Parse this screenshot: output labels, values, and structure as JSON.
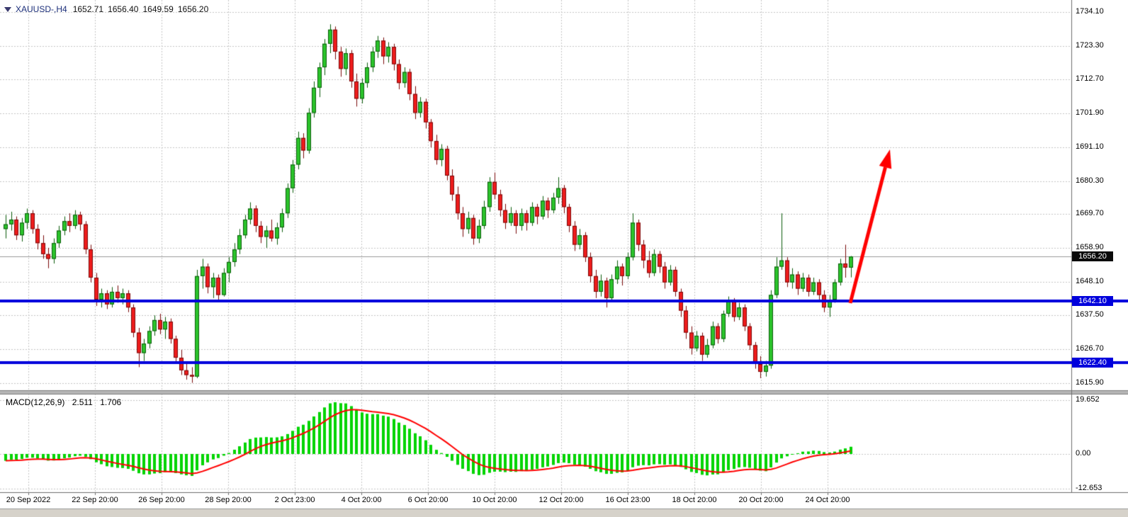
{
  "header": {
    "symbol": "XAUUSD-,H4",
    "open": "1652.71",
    "high": "1656.40",
    "low": "1649.59",
    "close": "1656.20"
  },
  "macd_header": {
    "name": "MACD(12,26,9)",
    "main": "2.511",
    "signal": "1.706"
  },
  "price_tags": [
    {
      "kind": "current-price",
      "label": "1656.20",
      "price": 1656.2,
      "bg": "#0a0a0a"
    },
    {
      "kind": "line-level",
      "label": "1642.10",
      "price": 1642.1,
      "bg": "#0000dc"
    },
    {
      "kind": "line-level",
      "label": "1622.40",
      "price": 1622.4,
      "bg": "#0000dc"
    }
  ],
  "colors": {
    "up": "#2bc42b",
    "up_border": "#0b5d0b",
    "down": "#ee1c1c",
    "down_border": "#7a0a0a",
    "grid": "#c6c6c6",
    "current_line": "#9a9a9a",
    "hline": "#0000dc",
    "arrow": "#ff0000",
    "macd_hist": "#00d400",
    "macd_signal": "#ff0000"
  },
  "chart_data": [
    {
      "type": "candlestick",
      "title": "XAUUSD-,H4",
      "timeframe": "H4",
      "ylim": [
        1615.9,
        1734.1
      ],
      "y_ticks": [
        1734.1,
        1723.3,
        1712.7,
        1701.9,
        1691.1,
        1680.3,
        1669.7,
        1658.9,
        1648.1,
        1637.5,
        1626.7,
        1615.9
      ],
      "y_tick_labels": [
        "1734.10",
        "1723.30",
        "1712.70",
        "1701.90",
        "1691.10",
        "1680.30",
        "1669.70",
        "1658.90",
        "1648.10",
        "1637.50",
        "1626.70",
        "1615.90"
      ],
      "x_tick_labels": [
        "20 Sep 2022",
        "22 Sep 20:00",
        "26 Sep 20:00",
        "28 Sep 20:00",
        "2 Oct 23:00",
        "4 Oct 20:00",
        "6 Oct 20:00",
        "10 Oct 20:00",
        "12 Oct 20:00",
        "16 Oct 23:00",
        "18 Oct 20:00",
        "20 Oct 20:00",
        "24 Oct 20:00"
      ],
      "current_price": {
        "price": 1656.2,
        "label": "1656.20"
      },
      "horizontal_lines": [
        {
          "price": 1642.1,
          "label": "1642.10"
        },
        {
          "price": 1622.4,
          "label": "1622.40"
        }
      ],
      "annotation_arrow": {
        "from": [
          1200,
          428
        ],
        "to": [
          1256,
          211
        ]
      },
      "candles": [
        [
          1665.0,
          1669.5,
          1662.0,
          1666.5
        ],
        [
          1666.5,
          1670.5,
          1664.5,
          1668.0
        ],
        [
          1668.0,
          1669.0,
          1661.5,
          1663.0
        ],
        [
          1663.0,
          1668.5,
          1661.0,
          1667.0
        ],
        [
          1667.0,
          1671.5,
          1665.0,
          1670.0
        ],
        [
          1670.0,
          1671.0,
          1663.5,
          1665.0
        ],
        [
          1665.0,
          1666.5,
          1658.5,
          1660.5
        ],
        [
          1660.5,
          1663.0,
          1655.5,
          1657.0
        ],
        [
          1657.0,
          1659.0,
          1652.5,
          1655.5
        ],
        [
          1655.5,
          1662.0,
          1654.0,
          1660.5
        ],
        [
          1660.5,
          1666.0,
          1659.0,
          1664.5
        ],
        [
          1664.5,
          1669.0,
          1663.0,
          1667.5
        ],
        [
          1667.5,
          1670.0,
          1664.0,
          1666.0
        ],
        [
          1666.0,
          1671.0,
          1665.0,
          1669.5
        ],
        [
          1669.5,
          1670.5,
          1664.5,
          1666.5
        ],
        [
          1666.5,
          1667.5,
          1657.0,
          1658.5
        ],
        [
          1658.5,
          1660.0,
          1648.0,
          1649.5
        ],
        [
          1649.5,
          1651.0,
          1640.5,
          1642.5
        ],
        [
          1642.5,
          1646.0,
          1640.0,
          1644.5
        ],
        [
          1644.5,
          1645.5,
          1639.5,
          1641.0
        ],
        [
          1641.0,
          1646.5,
          1640.0,
          1645.0
        ],
        [
          1645.0,
          1647.0,
          1641.5,
          1643.0
        ],
        [
          1643.0,
          1646.0,
          1641.0,
          1644.5
        ],
        [
          1644.5,
          1645.5,
          1638.5,
          1640.0
        ],
        [
          1640.0,
          1641.0,
          1630.5,
          1632.0
        ],
        [
          1632.0,
          1633.5,
          1621.0,
          1625.5
        ],
        [
          1625.5,
          1630.0,
          1623.0,
          1628.5
        ],
        [
          1628.5,
          1634.0,
          1627.0,
          1632.5
        ],
        [
          1632.5,
          1637.5,
          1631.0,
          1636.0
        ],
        [
          1636.0,
          1638.0,
          1631.5,
          1633.0
        ],
        [
          1633.0,
          1637.0,
          1630.0,
          1635.5
        ],
        [
          1635.5,
          1636.5,
          1628.5,
          1630.0
        ],
        [
          1630.0,
          1631.0,
          1622.5,
          1624.0
        ],
        [
          1624.0,
          1626.5,
          1618.5,
          1620.0
        ],
        [
          1620.0,
          1622.0,
          1617.0,
          1618.5
        ],
        [
          1618.5,
          1621.0,
          1616.0,
          1618.0
        ],
        [
          1618.0,
          1652.0,
          1617.5,
          1650.0
        ],
        [
          1650.0,
          1655.5,
          1646.0,
          1653.0
        ],
        [
          1653.0,
          1654.0,
          1644.5,
          1646.5
        ],
        [
          1646.5,
          1651.0,
          1643.0,
          1649.5
        ],
        [
          1649.5,
          1650.5,
          1642.5,
          1644.0
        ],
        [
          1644.0,
          1652.5,
          1643.5,
          1651.0
        ],
        [
          1651.0,
          1656.0,
          1648.0,
          1654.5
        ],
        [
          1654.5,
          1660.5,
          1653.0,
          1658.5
        ],
        [
          1658.5,
          1665.0,
          1657.0,
          1663.0
        ],
        [
          1663.0,
          1669.5,
          1662.0,
          1668.0
        ],
        [
          1668.0,
          1673.5,
          1666.5,
          1671.5
        ],
        [
          1671.5,
          1672.5,
          1664.0,
          1666.0
        ],
        [
          1666.0,
          1667.5,
          1660.5,
          1662.5
        ],
        [
          1662.5,
          1666.0,
          1659.0,
          1664.5
        ],
        [
          1664.5,
          1668.0,
          1661.0,
          1662.0
        ],
        [
          1662.0,
          1667.0,
          1660.0,
          1665.5
        ],
        [
          1665.5,
          1671.5,
          1664.0,
          1670.0
        ],
        [
          1670.0,
          1679.5,
          1668.5,
          1678.0
        ],
        [
          1678.0,
          1687.0,
          1676.5,
          1685.5
        ],
        [
          1685.5,
          1696.0,
          1684.0,
          1694.0
        ],
        [
          1694.0,
          1695.5,
          1687.5,
          1690.0
        ],
        [
          1690.0,
          1703.5,
          1689.0,
          1702.0
        ],
        [
          1702.0,
          1712.0,
          1700.5,
          1710.0
        ],
        [
          1710.0,
          1718.0,
          1707.0,
          1716.5
        ],
        [
          1716.5,
          1725.5,
          1714.0,
          1724.0
        ],
        [
          1724.0,
          1730.2,
          1721.0,
          1728.5
        ],
        [
          1728.5,
          1729.5,
          1719.0,
          1721.5
        ],
        [
          1721.5,
          1723.0,
          1713.5,
          1716.0
        ],
        [
          1716.0,
          1722.5,
          1714.0,
          1721.0
        ],
        [
          1721.0,
          1722.0,
          1710.0,
          1712.0
        ],
        [
          1712.0,
          1714.5,
          1704.0,
          1706.5
        ],
        [
          1706.5,
          1713.0,
          1705.0,
          1711.5
        ],
        [
          1711.5,
          1718.0,
          1710.0,
          1716.5
        ],
        [
          1716.5,
          1723.0,
          1715.0,
          1721.5
        ],
        [
          1721.5,
          1726.5,
          1719.5,
          1725.0
        ],
        [
          1725.0,
          1726.0,
          1717.5,
          1720.0
        ],
        [
          1720.0,
          1724.5,
          1718.0,
          1723.0
        ],
        [
          1723.0,
          1724.0,
          1715.5,
          1717.5
        ],
        [
          1717.5,
          1719.0,
          1709.5,
          1711.5
        ],
        [
          1711.5,
          1716.5,
          1710.0,
          1715.0
        ],
        [
          1715.0,
          1716.0,
          1706.0,
          1708.0
        ],
        [
          1708.0,
          1710.5,
          1700.0,
          1702.0
        ],
        [
          1702.0,
          1707.0,
          1700.5,
          1705.5
        ],
        [
          1705.5,
          1706.5,
          1697.0,
          1699.0
        ],
        [
          1699.0,
          1700.0,
          1691.0,
          1693.0
        ],
        [
          1693.0,
          1695.0,
          1685.5,
          1687.0
        ],
        [
          1687.0,
          1692.0,
          1685.0,
          1690.5
        ],
        [
          1690.5,
          1691.5,
          1680.5,
          1682.0
        ],
        [
          1682.0,
          1684.0,
          1674.0,
          1676.0
        ],
        [
          1676.0,
          1678.5,
          1668.0,
          1670.0
        ],
        [
          1670.0,
          1672.0,
          1662.5,
          1665.0
        ],
        [
          1665.0,
          1670.5,
          1663.5,
          1668.5
        ],
        [
          1668.5,
          1669.5,
          1660.0,
          1662.0
        ],
        [
          1662.0,
          1668.0,
          1660.5,
          1666.0
        ],
        [
          1666.0,
          1674.0,
          1665.0,
          1672.0
        ],
        [
          1672.0,
          1681.5,
          1670.5,
          1680.0
        ],
        [
          1680.0,
          1683.0,
          1674.5,
          1676.0
        ],
        [
          1676.0,
          1677.5,
          1669.0,
          1671.0
        ],
        [
          1671.0,
          1673.0,
          1665.0,
          1667.0
        ],
        [
          1667.0,
          1672.0,
          1666.0,
          1670.0
        ],
        [
          1670.0,
          1671.0,
          1663.5,
          1666.0
        ],
        [
          1666.0,
          1671.5,
          1664.5,
          1670.0
        ],
        [
          1670.0,
          1671.0,
          1664.5,
          1667.0
        ],
        [
          1667.0,
          1673.5,
          1666.0,
          1672.0
        ],
        [
          1672.0,
          1673.0,
          1666.5,
          1669.0
        ],
        [
          1669.0,
          1675.5,
          1668.0,
          1674.0
        ],
        [
          1674.0,
          1675.0,
          1668.5,
          1671.0
        ],
        [
          1671.0,
          1676.5,
          1670.0,
          1675.0
        ],
        [
          1675.0,
          1681.5,
          1673.0,
          1678.0
        ],
        [
          1678.0,
          1679.0,
          1670.0,
          1672.0
        ],
        [
          1672.0,
          1673.0,
          1664.0,
          1666.0
        ],
        [
          1666.0,
          1667.5,
          1658.0,
          1660.0
        ],
        [
          1660.0,
          1665.0,
          1658.5,
          1663.0
        ],
        [
          1663.0,
          1664.0,
          1654.5,
          1656.0
        ],
        [
          1656.0,
          1657.5,
          1648.0,
          1650.0
        ],
        [
          1650.0,
          1652.0,
          1643.0,
          1645.0
        ],
        [
          1645.0,
          1650.5,
          1643.5,
          1648.5
        ],
        [
          1648.5,
          1649.5,
          1640.0,
          1643.0
        ],
        [
          1643.0,
          1650.5,
          1642.0,
          1649.0
        ],
        [
          1649.0,
          1655.0,
          1647.5,
          1653.0
        ],
        [
          1653.0,
          1654.0,
          1647.0,
          1650.0
        ],
        [
          1650.0,
          1657.5,
          1649.0,
          1656.0
        ],
        [
          1656.0,
          1670.0,
          1655.0,
          1667.0
        ],
        [
          1667.0,
          1668.0,
          1658.0,
          1660.0
        ],
        [
          1660.0,
          1661.5,
          1652.5,
          1655.0
        ],
        [
          1655.0,
          1658.0,
          1649.5,
          1651.0
        ],
        [
          1651.0,
          1658.5,
          1650.0,
          1657.0
        ],
        [
          1657.0,
          1658.0,
          1651.0,
          1653.0
        ],
        [
          1653.0,
          1654.5,
          1646.0,
          1648.0
        ],
        [
          1648.0,
          1653.5,
          1647.0,
          1652.0
        ],
        [
          1652.0,
          1653.0,
          1643.5,
          1645.0
        ],
        [
          1645.0,
          1646.0,
          1637.0,
          1639.0
        ],
        [
          1639.0,
          1640.5,
          1630.0,
          1632.0
        ],
        [
          1632.0,
          1634.0,
          1625.0,
          1627.0
        ],
        [
          1627.0,
          1632.5,
          1626.0,
          1631.0
        ],
        [
          1631.0,
          1632.0,
          1623.0,
          1625.0
        ],
        [
          1625.0,
          1630.0,
          1624.0,
          1628.0
        ],
        [
          1628.0,
          1635.5,
          1627.0,
          1634.0
        ],
        [
          1634.0,
          1635.0,
          1628.5,
          1630.0
        ],
        [
          1630.0,
          1639.0,
          1629.0,
          1638.0
        ],
        [
          1638.0,
          1643.5,
          1637.0,
          1642.0
        ],
        [
          1642.0,
          1643.0,
          1635.5,
          1637.0
        ],
        [
          1637.0,
          1641.5,
          1636.0,
          1640.0
        ],
        [
          1640.0,
          1641.0,
          1632.5,
          1634.0
        ],
        [
          1634.0,
          1635.0,
          1626.5,
          1628.0
        ],
        [
          1628.0,
          1629.0,
          1620.5,
          1622.0
        ],
        [
          1622.0,
          1624.5,
          1617.5,
          1619.5
        ],
        [
          1619.5,
          1623.0,
          1618.0,
          1621.5
        ],
        [
          1621.5,
          1645.5,
          1620.5,
          1644.0
        ],
        [
          1644.0,
          1656.0,
          1643.0,
          1653.0
        ],
        [
          1653.0,
          1670.0,
          1652.0,
          1655.0
        ],
        [
          1655.0,
          1656.0,
          1646.5,
          1648.0
        ],
        [
          1648.0,
          1652.5,
          1646.0,
          1650.5
        ],
        [
          1650.5,
          1651.5,
          1644.0,
          1646.0
        ],
        [
          1646.0,
          1651.0,
          1645.0,
          1649.5
        ],
        [
          1649.5,
          1650.5,
          1643.5,
          1645.0
        ],
        [
          1645.0,
          1649.5,
          1644.0,
          1648.0
        ],
        [
          1648.0,
          1649.0,
          1642.5,
          1644.0
        ],
        [
          1644.0,
          1645.5,
          1638.5,
          1640.0
        ],
        [
          1640.0,
          1644.0,
          1637.0,
          1642.5
        ],
        [
          1642.5,
          1649.0,
          1641.5,
          1648.0
        ],
        [
          1648.0,
          1655.5,
          1647.0,
          1654.0
        ],
        [
          1654.0,
          1660.0,
          1649.5,
          1652.7
        ],
        [
          1652.7,
          1656.4,
          1649.6,
          1656.2
        ]
      ]
    },
    {
      "type": "macd",
      "label": "MACD(12,26,9)",
      "params": [
        12,
        26,
        9
      ],
      "current_main": 2.511,
      "current_signal": 1.706,
      "y_ticks": [
        19.652,
        0.0,
        -12.653
      ],
      "y_tick_labels": [
        "19.652",
        "0.00",
        "-12.653"
      ]
    }
  ]
}
